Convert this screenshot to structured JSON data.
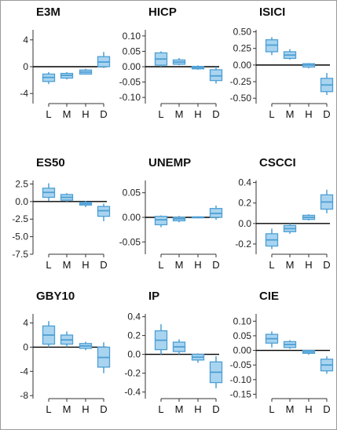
{
  "figure": {
    "border_color": "#9a9a9a"
  },
  "colors": {
    "box_fill": "#a9d4f0",
    "box_stroke": "#4d9fd4",
    "zero_line": "#000000",
    "axis": "#333333"
  },
  "chart_data": [
    {
      "type": "box",
      "title": "E3M",
      "categories": [
        "L",
        "M",
        "H",
        "D"
      ],
      "ylim": [
        -5.5,
        5.5
      ],
      "yticks": [
        4,
        0,
        -4
      ],
      "ytick_labels": [
        "4",
        "0",
        "-4"
      ],
      "boxes": [
        {
          "category": "L",
          "whisker_low": -2.6,
          "q1": -2.2,
          "median": -1.6,
          "q3": -1.1,
          "whisker_high": -0.8
        },
        {
          "category": "M",
          "whisker_low": -1.9,
          "q1": -1.7,
          "median": -1.3,
          "q3": -1.0,
          "whisker_high": -0.8
        },
        {
          "category": "H",
          "whisker_low": -1.2,
          "q1": -1.1,
          "median": -0.8,
          "q3": -0.5,
          "whisker_high": -0.3
        },
        {
          "category": "D",
          "whisker_low": -0.2,
          "q1": 0.0,
          "median": 0.7,
          "q3": 1.5,
          "whisker_high": 2.2
        }
      ]
    },
    {
      "type": "box",
      "title": "HICP",
      "categories": [
        "L",
        "M",
        "H",
        "D"
      ],
      "ylim": [
        -0.12,
        0.12
      ],
      "yticks": [
        0.1,
        0.05,
        0.0,
        -0.05,
        -0.1
      ],
      "ytick_labels": [
        "0.10",
        "0.05",
        "0.00",
        "-0.05",
        "-0.10"
      ],
      "boxes": [
        {
          "category": "L",
          "whisker_low": 0.0,
          "q1": 0.005,
          "median": 0.025,
          "q3": 0.045,
          "whisker_high": 0.05
        },
        {
          "category": "M",
          "whisker_low": 0.005,
          "q1": 0.008,
          "median": 0.015,
          "q3": 0.022,
          "whisker_high": 0.028
        },
        {
          "category": "H",
          "whisker_low": -0.01,
          "q1": -0.007,
          "median": -0.003,
          "q3": 0.001,
          "whisker_high": 0.004
        },
        {
          "category": "D",
          "whisker_low": -0.055,
          "q1": -0.045,
          "median": -0.03,
          "q3": -0.01,
          "whisker_high": 0.0
        }
      ]
    },
    {
      "type": "box",
      "title": "ISICI",
      "categories": [
        "L",
        "M",
        "H",
        "D"
      ],
      "ylim": [
        -0.58,
        0.53
      ],
      "yticks": [
        0.5,
        0.25,
        0.0,
        -0.25,
        -0.5
      ],
      "ytick_labels": [
        "0.50",
        "0.25",
        "0.00",
        "-0.25",
        "-0.50"
      ],
      "boxes": [
        {
          "category": "L",
          "whisker_low": 0.15,
          "q1": 0.2,
          "median": 0.3,
          "q3": 0.38,
          "whisker_high": 0.42
        },
        {
          "category": "M",
          "whisker_low": 0.08,
          "q1": 0.1,
          "median": 0.15,
          "q3": 0.2,
          "whisker_high": 0.24
        },
        {
          "category": "H",
          "whisker_low": -0.05,
          "q1": -0.03,
          "median": 0.0,
          "q3": 0.02,
          "whisker_high": 0.03
        },
        {
          "category": "D",
          "whisker_low": -0.45,
          "q1": -0.4,
          "median": -0.3,
          "q3": -0.2,
          "whisker_high": -0.12
        }
      ]
    },
    {
      "type": "box",
      "title": "ES50",
      "categories": [
        "L",
        "M",
        "H",
        "D"
      ],
      "ylim": [
        -7.5,
        3.0
      ],
      "yticks": [
        2.5,
        0.0,
        -2.5,
        -5.0,
        -7.5
      ],
      "ytick_labels": [
        "2.5",
        "0.0",
        "-2.5",
        "-5.0",
        "-7.5"
      ],
      "boxes": [
        {
          "category": "L",
          "whisker_low": 0.1,
          "q1": 0.6,
          "median": 1.3,
          "q3": 1.9,
          "whisker_high": 2.6
        },
        {
          "category": "M",
          "whisker_low": 0.0,
          "q1": 0.2,
          "median": 0.6,
          "q3": 1.0,
          "whisker_high": 1.2
        },
        {
          "category": "H",
          "whisker_low": -0.8,
          "q1": -0.5,
          "median": -0.3,
          "q3": -0.1,
          "whisker_high": 0.1
        },
        {
          "category": "D",
          "whisker_low": -2.8,
          "q1": -2.1,
          "median": -1.3,
          "q3": -0.7,
          "whisker_high": -0.3
        }
      ]
    },
    {
      "type": "box",
      "title": "UNEMP",
      "categories": [
        "L",
        "M",
        "H",
        "D"
      ],
      "ylim": [
        -0.075,
        0.075
      ],
      "yticks": [
        0.05,
        0.0,
        -0.05
      ],
      "ytick_labels": [
        "0.05",
        "0.00",
        "-0.05"
      ],
      "boxes": [
        {
          "category": "L",
          "whisker_low": -0.02,
          "q1": -0.015,
          "median": -0.005,
          "q3": 0.002,
          "whisker_high": 0.004
        },
        {
          "category": "M",
          "whisker_low": -0.01,
          "q1": -0.007,
          "median": -0.003,
          "q3": 0.0,
          "whisker_high": 0.003
        },
        {
          "category": "H",
          "whisker_low": -0.002,
          "q1": -0.001,
          "median": 0.0,
          "q3": 0.001,
          "whisker_high": 0.002
        },
        {
          "category": "D",
          "whisker_low": -0.005,
          "q1": 0.0,
          "median": 0.008,
          "q3": 0.018,
          "whisker_high": 0.024
        }
      ]
    },
    {
      "type": "box",
      "title": "CSCCI",
      "categories": [
        "L",
        "M",
        "H",
        "D"
      ],
      "ylim": [
        -0.3,
        0.42
      ],
      "yticks": [
        0.4,
        0.2,
        0.0,
        -0.2
      ],
      "ytick_labels": [
        "0.4",
        "0.2",
        "0.0",
        "-0.2"
      ],
      "boxes": [
        {
          "category": "L",
          "whisker_low": -0.25,
          "q1": -0.22,
          "median": -0.16,
          "q3": -0.1,
          "whisker_high": -0.05
        },
        {
          "category": "M",
          "whisker_low": -0.1,
          "q1": -0.08,
          "median": -0.05,
          "q3": -0.02,
          "whisker_high": 0.0
        },
        {
          "category": "H",
          "whisker_low": 0.03,
          "q1": 0.04,
          "median": 0.06,
          "q3": 0.08,
          "whisker_high": 0.09
        },
        {
          "category": "D",
          "whisker_low": 0.1,
          "q1": 0.14,
          "median": 0.21,
          "q3": 0.28,
          "whisker_high": 0.33
        }
      ]
    },
    {
      "type": "box",
      "title": "GBY10",
      "categories": [
        "L",
        "M",
        "H",
        "D"
      ],
      "ylim": [
        -8.5,
        5.5
      ],
      "yticks": [
        4,
        0,
        -4,
        -8
      ],
      "ytick_labels": [
        "4",
        "0",
        "-4",
        "-8"
      ],
      "boxes": [
        {
          "category": "L",
          "whisker_low": 0.0,
          "q1": 0.5,
          "median": 2.0,
          "q3": 3.5,
          "whisker_high": 4.3
        },
        {
          "category": "M",
          "whisker_low": 0.0,
          "q1": 0.5,
          "median": 1.2,
          "q3": 2.0,
          "whisker_high": 2.6
        },
        {
          "category": "H",
          "whisker_low": -0.5,
          "q1": -0.2,
          "median": 0.2,
          "q3": 0.6,
          "whisker_high": 0.9
        },
        {
          "category": "D",
          "whisker_low": -4.3,
          "q1": -3.3,
          "median": -1.7,
          "q3": 0.0,
          "whisker_high": 0.8
        }
      ]
    },
    {
      "type": "box",
      "title": "IP",
      "categories": [
        "L",
        "M",
        "H",
        "D"
      ],
      "ylim": [
        -0.47,
        0.43
      ],
      "yticks": [
        0.4,
        0.2,
        0.0,
        -0.2,
        -0.4
      ],
      "ytick_labels": [
        "0.4",
        "0.2",
        "0.0",
        "-0.2",
        "-0.4"
      ],
      "boxes": [
        {
          "category": "L",
          "whisker_low": 0.0,
          "q1": 0.05,
          "median": 0.15,
          "q3": 0.25,
          "whisker_high": 0.32
        },
        {
          "category": "M",
          "whisker_low": 0.0,
          "q1": 0.03,
          "median": 0.08,
          "q3": 0.13,
          "whisker_high": 0.16
        },
        {
          "category": "H",
          "whisker_low": -0.09,
          "q1": -0.06,
          "median": -0.03,
          "q3": 0.0,
          "whisker_high": 0.01
        },
        {
          "category": "D",
          "whisker_low": -0.36,
          "q1": -0.3,
          "median": -0.19,
          "q3": -0.08,
          "whisker_high": -0.02
        }
      ]
    },
    {
      "type": "box",
      "title": "CIE",
      "categories": [
        "L",
        "M",
        "H",
        "D"
      ],
      "ylim": [
        -0.165,
        0.125
      ],
      "yticks": [
        0.1,
        0.05,
        0.0,
        -0.05,
        -0.1,
        -0.15
      ],
      "ytick_labels": [
        "0.10",
        "0.05",
        "0.00",
        "-0.05",
        "-0.10",
        "-0.15"
      ],
      "boxes": [
        {
          "category": "L",
          "whisker_low": 0.01,
          "q1": 0.025,
          "median": 0.04,
          "q3": 0.055,
          "whisker_high": 0.065
        },
        {
          "category": "M",
          "whisker_low": 0.005,
          "q1": 0.01,
          "median": 0.02,
          "q3": 0.03,
          "whisker_high": 0.035
        },
        {
          "category": "H",
          "whisker_low": -0.015,
          "q1": -0.01,
          "median": -0.005,
          "q3": 0.0,
          "whisker_high": 0.002
        },
        {
          "category": "D",
          "whisker_low": -0.08,
          "q1": -0.07,
          "median": -0.05,
          "q3": -0.03,
          "whisker_high": -0.02
        }
      ]
    }
  ]
}
